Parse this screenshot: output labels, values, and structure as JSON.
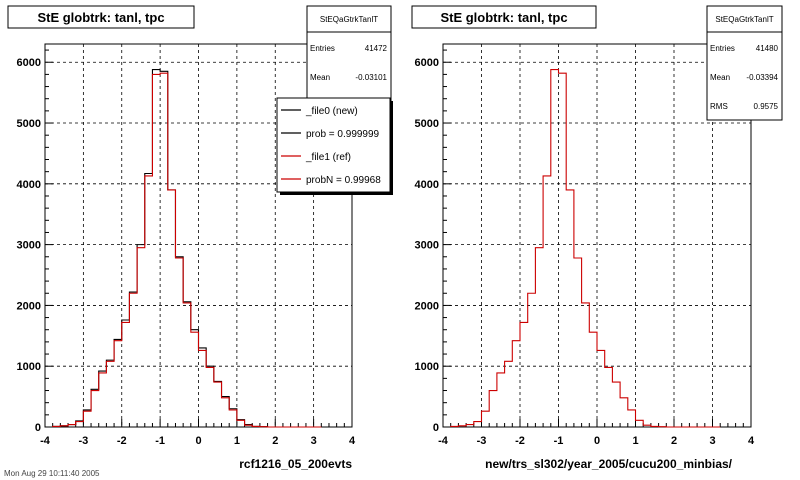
{
  "footer": "Mon Aug 29 10:11:40 2005",
  "chart_data": [
    {
      "type": "histogram",
      "title": "StE globtrk: tanl, tpc",
      "xlabel": "rcf1216_05_200evts",
      "xlim": [
        -4,
        4
      ],
      "ylim": [
        0,
        6300
      ],
      "xticks": [
        -4,
        -3,
        -2,
        -1,
        0,
        1,
        2,
        3,
        4
      ],
      "yticks": [
        0,
        1000,
        2000,
        3000,
        4000,
        5000,
        6000
      ],
      "grid": true,
      "stats": {
        "name": "StEQaGtrkTanlT",
        "rows": [
          {
            "label": "Entries",
            "value": "41472"
          },
          {
            "label": "Mean",
            "value": "-0.03101"
          }
        ]
      },
      "legend": {
        "placement": "top-right",
        "entries": [
          {
            "label": "_file0 (new)",
            "color": "#000000"
          },
          {
            "label": "prob = 0.999999",
            "color": "#000000"
          },
          {
            "label": "_file1 (ref)",
            "color": "#cc0000"
          },
          {
            "label": "probN = 0.99968",
            "color": "#cc0000"
          }
        ]
      },
      "bin_edges": [
        -3.8,
        -3.6,
        -3.4,
        -3.2,
        -3.0,
        -2.8,
        -2.6,
        -2.4,
        -2.2,
        -2.0,
        -1.8,
        -1.6,
        -1.4,
        -1.2,
        -1.0,
        -0.8,
        -0.6,
        -0.4,
        -0.2,
        0.0,
        0.2,
        0.4,
        0.6,
        0.8,
        1.0,
        1.2,
        1.4,
        1.6,
        1.8,
        2.0,
        2.2,
        2.4,
        2.6,
        2.8,
        3.0,
        3.2
      ],
      "series": [
        {
          "name": "_file0 (new)",
          "color": "#000000",
          "values": [
            10,
            20,
            40,
            100,
            280,
            620,
            920,
            1100,
            1440,
            1760,
            2220,
            3000,
            4170,
            5880,
            5850,
            3900,
            2800,
            2060,
            1600,
            1300,
            1000,
            750,
            500,
            300,
            120,
            40,
            10,
            5,
            0,
            0,
            0,
            0,
            0,
            0,
            0
          ]
        },
        {
          "name": "_file1 (ref)",
          "color": "#cc0000",
          "values": [
            10,
            20,
            40,
            90,
            260,
            600,
            890,
            1080,
            1420,
            1720,
            2200,
            2950,
            4130,
            5800,
            5820,
            3900,
            2780,
            2040,
            1560,
            1260,
            980,
            740,
            480,
            280,
            110,
            30,
            10,
            5,
            0,
            0,
            0,
            0,
            0,
            0,
            0
          ]
        }
      ]
    },
    {
      "type": "histogram",
      "title": "StE globtrk: tanl, tpc",
      "xlabel": "new/trs_sl302/year_2005/cucu200_minbias/",
      "xlim": [
        -4,
        4
      ],
      "ylim": [
        0,
        6300
      ],
      "xticks": [
        -4,
        -3,
        -2,
        -1,
        0,
        1,
        2,
        3,
        4
      ],
      "yticks": [
        0,
        1000,
        2000,
        3000,
        4000,
        5000,
        6000
      ],
      "grid": true,
      "stats": {
        "name": "StEQaGtrkTanlT",
        "rows": [
          {
            "label": "Entries",
            "value": "41480"
          },
          {
            "label": "Mean",
            "value": "-0.03394"
          },
          {
            "label": "RMS",
            "value": "0.9575"
          }
        ]
      },
      "bin_edges": [
        -3.8,
        -3.6,
        -3.4,
        -3.2,
        -3.0,
        -2.8,
        -2.6,
        -2.4,
        -2.2,
        -2.0,
        -1.8,
        -1.6,
        -1.4,
        -1.2,
        -1.0,
        -0.8,
        -0.6,
        -0.4,
        -0.2,
        0.0,
        0.2,
        0.4,
        0.6,
        0.8,
        1.0,
        1.2,
        1.4,
        1.6,
        1.8,
        2.0,
        2.2,
        2.4,
        2.6,
        2.8,
        3.0,
        3.2
      ],
      "series": [
        {
          "name": "",
          "color": "#cc0000",
          "values": [
            10,
            20,
            40,
            90,
            260,
            600,
            890,
            1080,
            1420,
            1720,
            2200,
            2950,
            4130,
            5880,
            5820,
            3900,
            2780,
            2040,
            1560,
            1260,
            980,
            740,
            480,
            280,
            110,
            30,
            10,
            5,
            0,
            0,
            0,
            0,
            0,
            0,
            0
          ]
        }
      ]
    }
  ]
}
